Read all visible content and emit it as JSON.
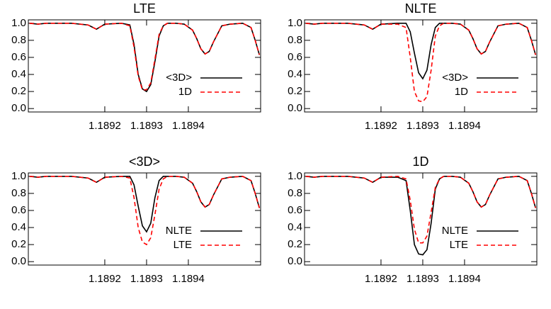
{
  "chart_data": [
    {
      "type": "line",
      "title": "LTE",
      "x": [
        1.18902,
        1.18904,
        1.18906,
        1.18908,
        1.18912,
        1.18916,
        1.18918,
        1.1892,
        1.18924,
        1.18926,
        1.18927,
        1.18928,
        1.18929,
        1.1893,
        1.18931,
        1.18932,
        1.18933,
        1.18934,
        1.18935,
        1.18937,
        1.18939,
        1.18941,
        1.18942,
        1.18943,
        1.18944,
        1.18945,
        1.18946,
        1.18948,
        1.1895,
        1.18953,
        1.18955,
        1.18956,
        1.18957
      ],
      "series": [
        {
          "name": "<3D>",
          "color": "#000000",
          "style": "solid",
          "values": [
            1.0,
            0.99,
            1.0,
            1.0,
            1.0,
            0.98,
            0.93,
            0.99,
            1.0,
            0.98,
            0.75,
            0.4,
            0.23,
            0.2,
            0.28,
            0.55,
            0.85,
            0.97,
            1.0,
            1.0,
            0.99,
            0.92,
            0.82,
            0.7,
            0.64,
            0.67,
            0.78,
            0.97,
            0.99,
            1.0,
            0.95,
            0.8,
            0.63
          ]
        },
        {
          "name": "1D",
          "color": "#ff0000",
          "style": "dashed",
          "values": [
            1.0,
            0.99,
            1.0,
            1.0,
            1.0,
            0.98,
            0.93,
            0.99,
            1.0,
            0.97,
            0.72,
            0.38,
            0.22,
            0.22,
            0.3,
            0.58,
            0.87,
            0.97,
            1.0,
            1.0,
            0.99,
            0.92,
            0.82,
            0.7,
            0.64,
            0.67,
            0.78,
            0.97,
            0.99,
            1.0,
            0.95,
            0.8,
            0.63
          ]
        }
      ],
      "xlim": [
        1.189017,
        1.189573
      ],
      "ylim": [
        -0.04,
        1.04
      ],
      "xticks": [
        1.1892,
        1.1893,
        1.1894
      ],
      "yticks": [
        {
          "value": 0,
          "label": "0.0"
        },
        0.2,
        0.4,
        0.6,
        0.8,
        {
          "value": 1,
          "label": "1.0"
        }
      ]
    },
    {
      "type": "line",
      "title": "NLTE",
      "x": [
        1.18902,
        1.18904,
        1.18906,
        1.18908,
        1.18912,
        1.18916,
        1.18918,
        1.1892,
        1.18924,
        1.18926,
        1.18927,
        1.18928,
        1.18929,
        1.1893,
        1.18931,
        1.18932,
        1.18933,
        1.18934,
        1.18935,
        1.18937,
        1.18939,
        1.18941,
        1.18942,
        1.18943,
        1.18944,
        1.18945,
        1.18946,
        1.18948,
        1.1895,
        1.18953,
        1.18955,
        1.18956,
        1.18957
      ],
      "series": [
        {
          "name": "<3D>",
          "color": "#000000",
          "style": "solid",
          "values": [
            1.0,
            0.99,
            1.0,
            1.0,
            1.0,
            0.98,
            0.93,
            0.99,
            1.0,
            1.0,
            0.9,
            0.65,
            0.42,
            0.35,
            0.45,
            0.75,
            0.95,
            1.0,
            1.0,
            1.0,
            0.99,
            0.92,
            0.82,
            0.7,
            0.64,
            0.67,
            0.78,
            0.97,
            0.99,
            1.0,
            0.95,
            0.8,
            0.63
          ]
        },
        {
          "name": "1D",
          "color": "#ff0000",
          "style": "dashed",
          "values": [
            1.0,
            0.99,
            1.0,
            1.0,
            1.0,
            0.98,
            0.93,
            0.99,
            0.99,
            0.95,
            0.6,
            0.2,
            0.09,
            0.08,
            0.14,
            0.45,
            0.85,
            0.97,
            1.0,
            1.0,
            0.99,
            0.92,
            0.82,
            0.7,
            0.64,
            0.67,
            0.78,
            0.97,
            0.99,
            1.0,
            0.95,
            0.8,
            0.63
          ]
        }
      ],
      "xlim": [
        1.189017,
        1.189573
      ],
      "ylim": [
        -0.04,
        1.04
      ],
      "xticks": [
        1.1892,
        1.1893,
        1.1894
      ],
      "yticks": [
        {
          "value": 0,
          "label": "0.0"
        },
        0.2,
        0.4,
        0.6,
        0.8,
        {
          "value": 1,
          "label": "1.0"
        }
      ]
    },
    {
      "type": "line",
      "title": "<3D>",
      "x": [
        1.18902,
        1.18904,
        1.18906,
        1.18908,
        1.18912,
        1.18916,
        1.18918,
        1.1892,
        1.18924,
        1.18926,
        1.18927,
        1.18928,
        1.18929,
        1.1893,
        1.18931,
        1.18932,
        1.18933,
        1.18934,
        1.18935,
        1.18937,
        1.18939,
        1.18941,
        1.18942,
        1.18943,
        1.18944,
        1.18945,
        1.18946,
        1.18948,
        1.1895,
        1.18953,
        1.18955,
        1.18956,
        1.18957
      ],
      "series": [
        {
          "name": "NLTE",
          "color": "#000000",
          "style": "solid",
          "values": [
            1.0,
            0.99,
            1.0,
            1.0,
            1.0,
            0.98,
            0.93,
            0.99,
            1.0,
            1.0,
            0.9,
            0.65,
            0.42,
            0.35,
            0.45,
            0.75,
            0.95,
            1.0,
            1.0,
            1.0,
            0.99,
            0.92,
            0.82,
            0.7,
            0.64,
            0.67,
            0.78,
            0.97,
            0.99,
            1.0,
            0.95,
            0.8,
            0.63
          ]
        },
        {
          "name": "LTE",
          "color": "#ff0000",
          "style": "dashed",
          "values": [
            1.0,
            0.99,
            1.0,
            1.0,
            1.0,
            0.98,
            0.93,
            0.99,
            1.0,
            0.98,
            0.75,
            0.4,
            0.23,
            0.2,
            0.28,
            0.55,
            0.85,
            0.97,
            1.0,
            1.0,
            0.99,
            0.92,
            0.82,
            0.7,
            0.64,
            0.67,
            0.78,
            0.97,
            0.99,
            1.0,
            0.95,
            0.8,
            0.63
          ]
        }
      ],
      "xlim": [
        1.189017,
        1.189573
      ],
      "ylim": [
        -0.04,
        1.04
      ],
      "xticks": [
        1.1892,
        1.1893,
        1.1894
      ],
      "yticks": [
        {
          "value": 0,
          "label": "0.0"
        },
        0.2,
        0.4,
        0.6,
        0.8,
        {
          "value": 1,
          "label": "1.0"
        }
      ]
    },
    {
      "type": "line",
      "title": "1D",
      "x": [
        1.18902,
        1.18904,
        1.18906,
        1.18908,
        1.18912,
        1.18916,
        1.18918,
        1.1892,
        1.18924,
        1.18926,
        1.18927,
        1.18928,
        1.18929,
        1.1893,
        1.18931,
        1.18932,
        1.18933,
        1.18934,
        1.18935,
        1.18937,
        1.18939,
        1.18941,
        1.18942,
        1.18943,
        1.18944,
        1.18945,
        1.18946,
        1.18948,
        1.1895,
        1.18953,
        1.18955,
        1.18956,
        1.18957
      ],
      "series": [
        {
          "name": "NLTE",
          "color": "#000000",
          "style": "solid",
          "values": [
            1.0,
            0.99,
            1.0,
            1.0,
            1.0,
            0.98,
            0.93,
            0.99,
            0.99,
            0.95,
            0.6,
            0.2,
            0.09,
            0.08,
            0.14,
            0.45,
            0.85,
            0.97,
            1.0,
            1.0,
            0.99,
            0.92,
            0.82,
            0.7,
            0.64,
            0.67,
            0.78,
            0.97,
            0.99,
            1.0,
            0.95,
            0.8,
            0.63
          ]
        },
        {
          "name": "LTE",
          "color": "#ff0000",
          "style": "dashed",
          "values": [
            1.0,
            0.99,
            1.0,
            1.0,
            1.0,
            0.98,
            0.93,
            0.99,
            1.0,
            0.97,
            0.72,
            0.38,
            0.22,
            0.22,
            0.3,
            0.58,
            0.87,
            0.97,
            1.0,
            1.0,
            0.99,
            0.92,
            0.82,
            0.7,
            0.64,
            0.67,
            0.78,
            0.97,
            0.99,
            1.0,
            0.95,
            0.8,
            0.63
          ]
        }
      ],
      "xlim": [
        1.189017,
        1.189573
      ],
      "ylim": [
        -0.04,
        1.04
      ],
      "xticks": [
        1.1892,
        1.1893,
        1.1894
      ],
      "yticks": [
        {
          "value": 0,
          "label": "0.0"
        },
        0.2,
        0.4,
        0.6,
        0.8,
        {
          "value": 1,
          "label": "1.0"
        }
      ]
    }
  ]
}
